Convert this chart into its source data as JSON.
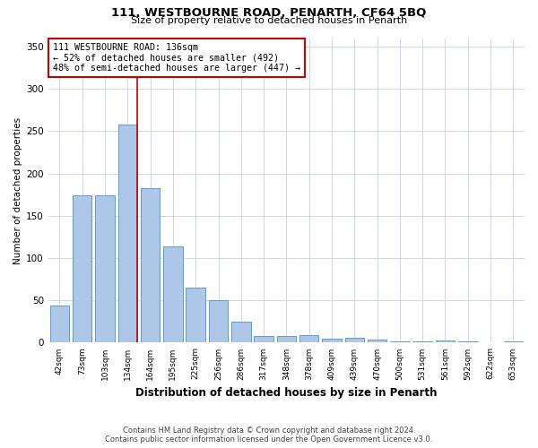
{
  "title": "111, WESTBOURNE ROAD, PENARTH, CF64 5BQ",
  "subtitle": "Size of property relative to detached houses in Penarth",
  "xlabel": "Distribution of detached houses by size in Penarth",
  "ylabel": "Number of detached properties",
  "footnote1": "Contains HM Land Registry data © Crown copyright and database right 2024.",
  "footnote2": "Contains public sector information licensed under the Open Government Licence v3.0.",
  "categories": [
    "42sqm",
    "73sqm",
    "103sqm",
    "134sqm",
    "164sqm",
    "195sqm",
    "225sqm",
    "256sqm",
    "286sqm",
    "317sqm",
    "348sqm",
    "378sqm",
    "409sqm",
    "439sqm",
    "470sqm",
    "500sqm",
    "531sqm",
    "561sqm",
    "592sqm",
    "622sqm",
    "653sqm"
  ],
  "values": [
    44,
    174,
    174,
    258,
    183,
    114,
    65,
    50,
    25,
    8,
    8,
    9,
    5,
    6,
    4,
    2,
    2,
    3,
    1,
    0,
    2
  ],
  "bar_color": "#aec6e8",
  "bar_edge_color": "#5a9fd4",
  "red_line_index": 3,
  "red_line_color": "#cc0000",
  "ylim": [
    0,
    360
  ],
  "yticks": [
    0,
    50,
    100,
    150,
    200,
    250,
    300,
    350
  ],
  "annotation_text": "111 WESTBOURNE ROAD: 136sqm\n← 52% of detached houses are smaller (492)\n48% of semi-detached houses are larger (447) →",
  "annotation_box_color": "#ffffff",
  "annotation_box_edge": "#cc0000",
  "background_color": "#ffffff",
  "grid_color": "#d0d8e8"
}
